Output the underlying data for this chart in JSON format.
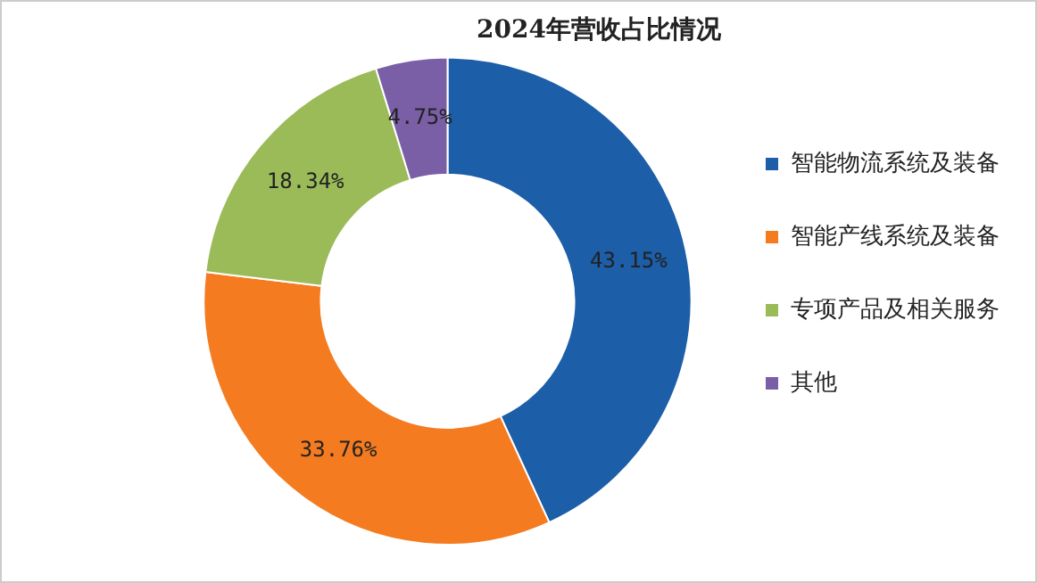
{
  "chart_data": {
    "type": "donut",
    "title": "2024年营收占比情况",
    "categories": [
      "智能物流系统及装备",
      "智能产线系统及装备",
      "专项产品及相关服务",
      "其他"
    ],
    "values": [
      43.15,
      33.76,
      18.34,
      4.75
    ],
    "colors": [
      "#1c5ea8",
      "#f47b20",
      "#9bbb59",
      "#7a5fa6"
    ],
    "value_labels": [
      "43.15%",
      "33.76%",
      "18.34%",
      "4.75%"
    ],
    "legend": "right"
  }
}
